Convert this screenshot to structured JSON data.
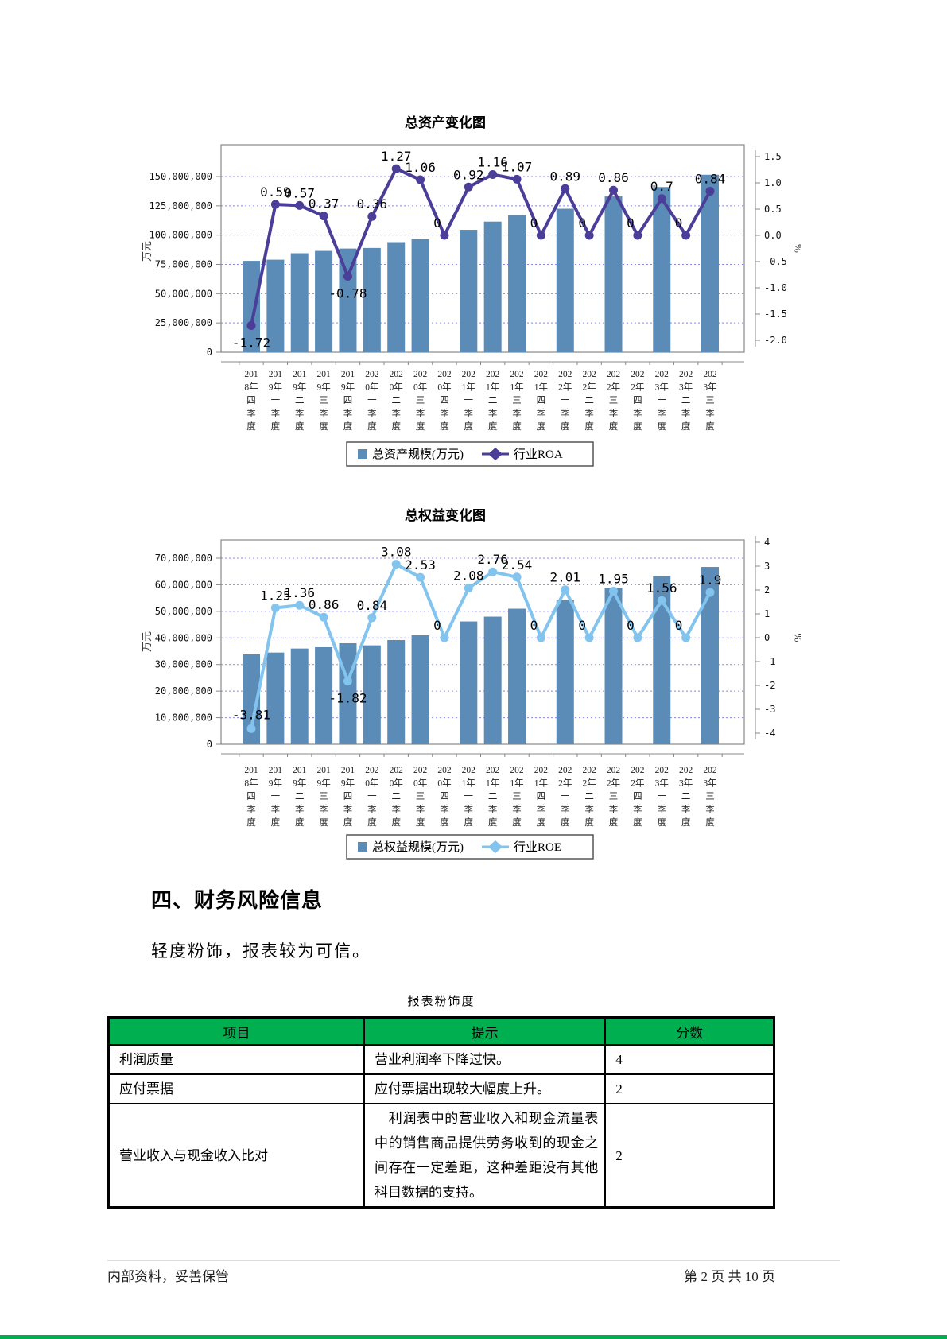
{
  "section": {
    "heading": "四、财务风险信息",
    "paragraph": "轻度粉饰，报表较为可信。"
  },
  "table": {
    "title": "报表粉饰度",
    "header_bg": "#00B050",
    "headers": [
      "项目",
      "提示",
      "分数"
    ],
    "rows": [
      {
        "item": "利润质量",
        "hint": "营业利润率下降过快。",
        "score": "4"
      },
      {
        "item": "应付票据",
        "hint": "应付票据出现较大幅度上升。",
        "score": "2"
      },
      {
        "item": "营业收入与现金收入比对",
        "hint": "利润表中的营业收入和现金流量表中的销售商品提供劳务收到的现金之间存在一定差距，这种差距没有其他科目数据的支持。",
        "score": "2"
      }
    ]
  },
  "footer": {
    "left": "内部资料，妥善保管",
    "right": "第 2 页  共 10 页"
  },
  "colors": {
    "bar_blue": "#5B8CB8",
    "roa_line": "#4B3E99",
    "roe_line": "#82C4EE",
    "gridline": "#8888EE",
    "table_header_green": "#00B050",
    "bottom_bar_green": "#00B050"
  },
  "chart_data": [
    {
      "name": "total-assets",
      "type": "bar+line",
      "title": "总资产变化图",
      "grid": true,
      "legend_position": "bottom",
      "categories": [
        "2018年四季度",
        "2019年一季度",
        "2019年二季度",
        "2019年三季度",
        "2019年四季度",
        "2020年一季度",
        "2020年二季度",
        "2020年三季度",
        "2020年四季度",
        "2021年一季度",
        "2021年二季度",
        "2021年三季度",
        "2021年四季度",
        "2022年一季度",
        "2022年二季度",
        "2022年三季度",
        "2022年四季度",
        "2023年一季度",
        "2023年二季度",
        "2023年三季度"
      ],
      "series": [
        {
          "name": "总资产规模(万元)",
          "type": "bar",
          "axis": "left",
          "color": "#5B8CB8",
          "values": [
            78000000,
            79000000,
            84500000,
            86500000,
            88500000,
            89000000,
            94000000,
            96500000,
            null,
            104500000,
            111500000,
            117000000,
            null,
            122500000,
            null,
            133000000,
            null,
            141000000,
            null,
            151500000
          ]
        },
        {
          "name": "行业ROA",
          "type": "line",
          "axis": "right",
          "color": "#4B3E99",
          "values": [
            -1.72,
            0.59,
            0.57,
            0.37,
            -0.78,
            0.36,
            1.27,
            1.06,
            0,
            0.92,
            1.16,
            1.07,
            0,
            0.89,
            0,
            0.86,
            0,
            0.7,
            0,
            0.84
          ]
        }
      ],
      "left_axis": {
        "title": "万元",
        "min": 0,
        "max": 150000000,
        "step": 25000000
      },
      "right_axis": {
        "title": "%",
        "min": -2.0,
        "max": 1.5,
        "step": 0.5
      }
    },
    {
      "name": "total-equity",
      "type": "bar+line",
      "title": "总权益变化图",
      "grid": true,
      "legend_position": "bottom",
      "categories": [
        "2018年四季度",
        "2019年一季度",
        "2019年二季度",
        "2019年三季度",
        "2019年四季度",
        "2020年一季度",
        "2020年二季度",
        "2020年三季度",
        "2020年四季度",
        "2021年一季度",
        "2021年二季度",
        "2021年三季度",
        "2021年四季度",
        "2022年一季度",
        "2022年二季度",
        "2022年三季度",
        "2022年四季度",
        "2023年一季度",
        "2023年二季度",
        "2023年三季度"
      ],
      "series": [
        {
          "name": "总权益规模(万元)",
          "type": "bar",
          "axis": "left",
          "color": "#5B8CB8",
          "values": [
            33800000,
            34500000,
            36000000,
            36500000,
            38000000,
            37200000,
            39200000,
            41000000,
            null,
            46200000,
            48000000,
            51000000,
            null,
            54200000,
            null,
            58700000,
            null,
            63200000,
            null,
            66700000
          ]
        },
        {
          "name": "行业ROE",
          "type": "line",
          "axis": "right",
          "color": "#82C4EE",
          "values": [
            -3.81,
            1.25,
            1.36,
            0.86,
            -1.82,
            0.84,
            3.08,
            2.53,
            0,
            2.08,
            2.76,
            2.54,
            0,
            2.01,
            0,
            1.95,
            0,
            1.56,
            0,
            1.9
          ]
        }
      ],
      "left_axis": {
        "title": "万元",
        "min": 0,
        "max": 70000000,
        "step": 10000000
      },
      "right_axis": {
        "title": "%",
        "min": -4,
        "max": 4,
        "step": 1
      }
    }
  ]
}
